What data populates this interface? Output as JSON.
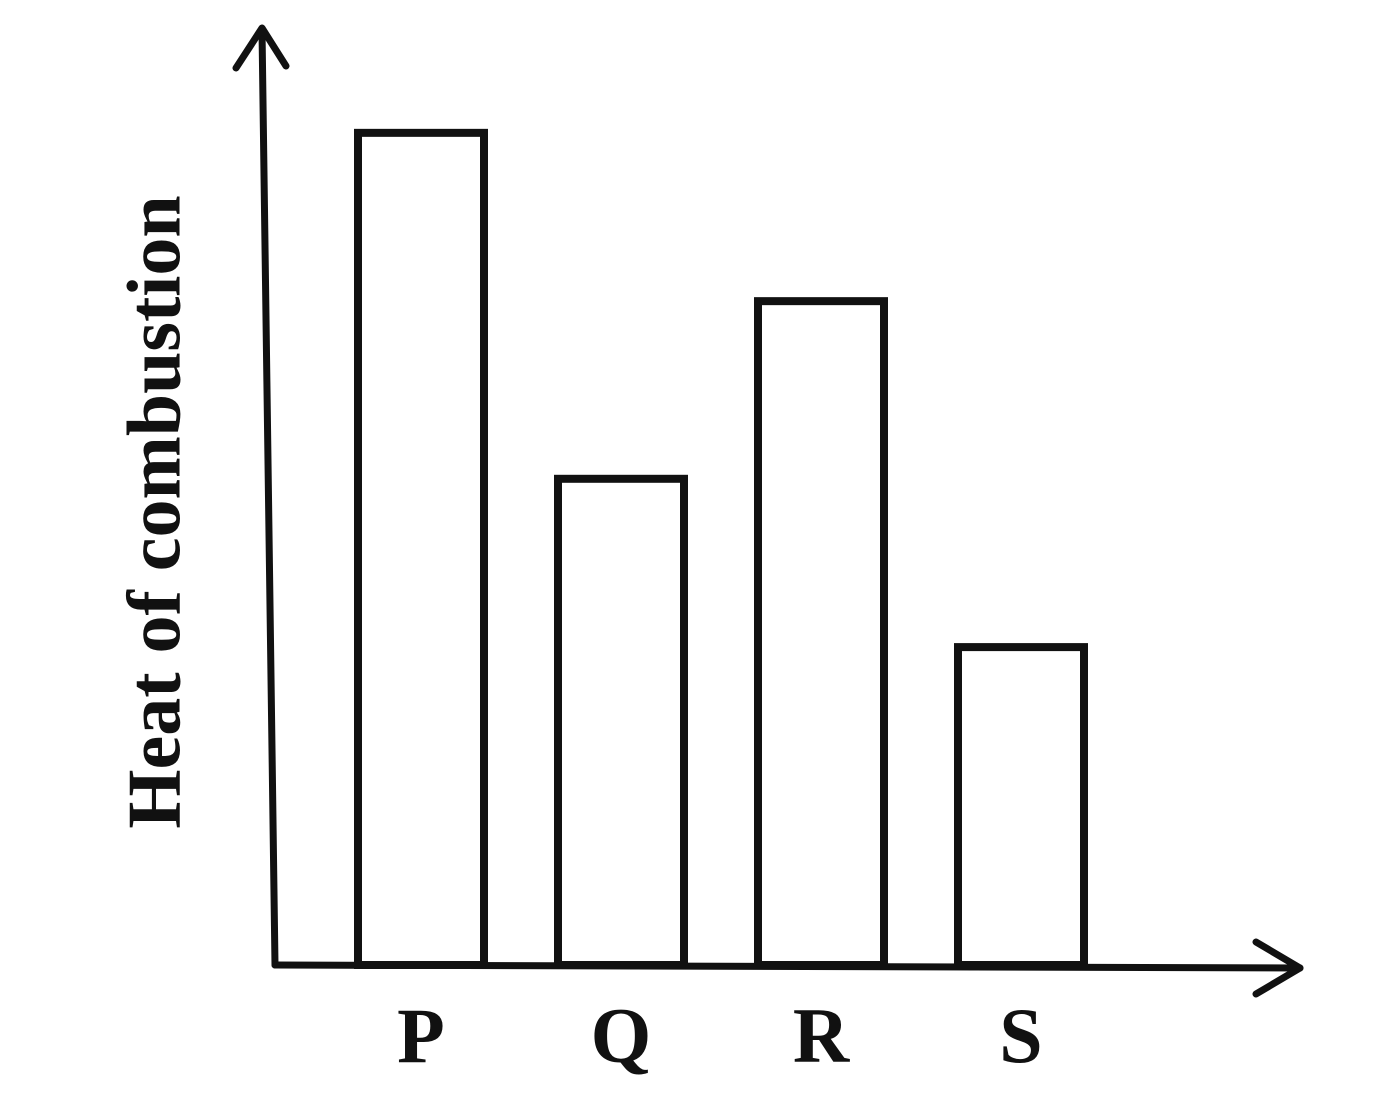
{
  "chart_data": {
    "type": "bar",
    "y_label": "Heat of combustion",
    "categories": [
      "P",
      "Q",
      "R",
      "S"
    ],
    "values": [
      89,
      52,
      71,
      34
    ],
    "color": "#ffffff",
    "ylim": [
      0,
      100
    ]
  }
}
